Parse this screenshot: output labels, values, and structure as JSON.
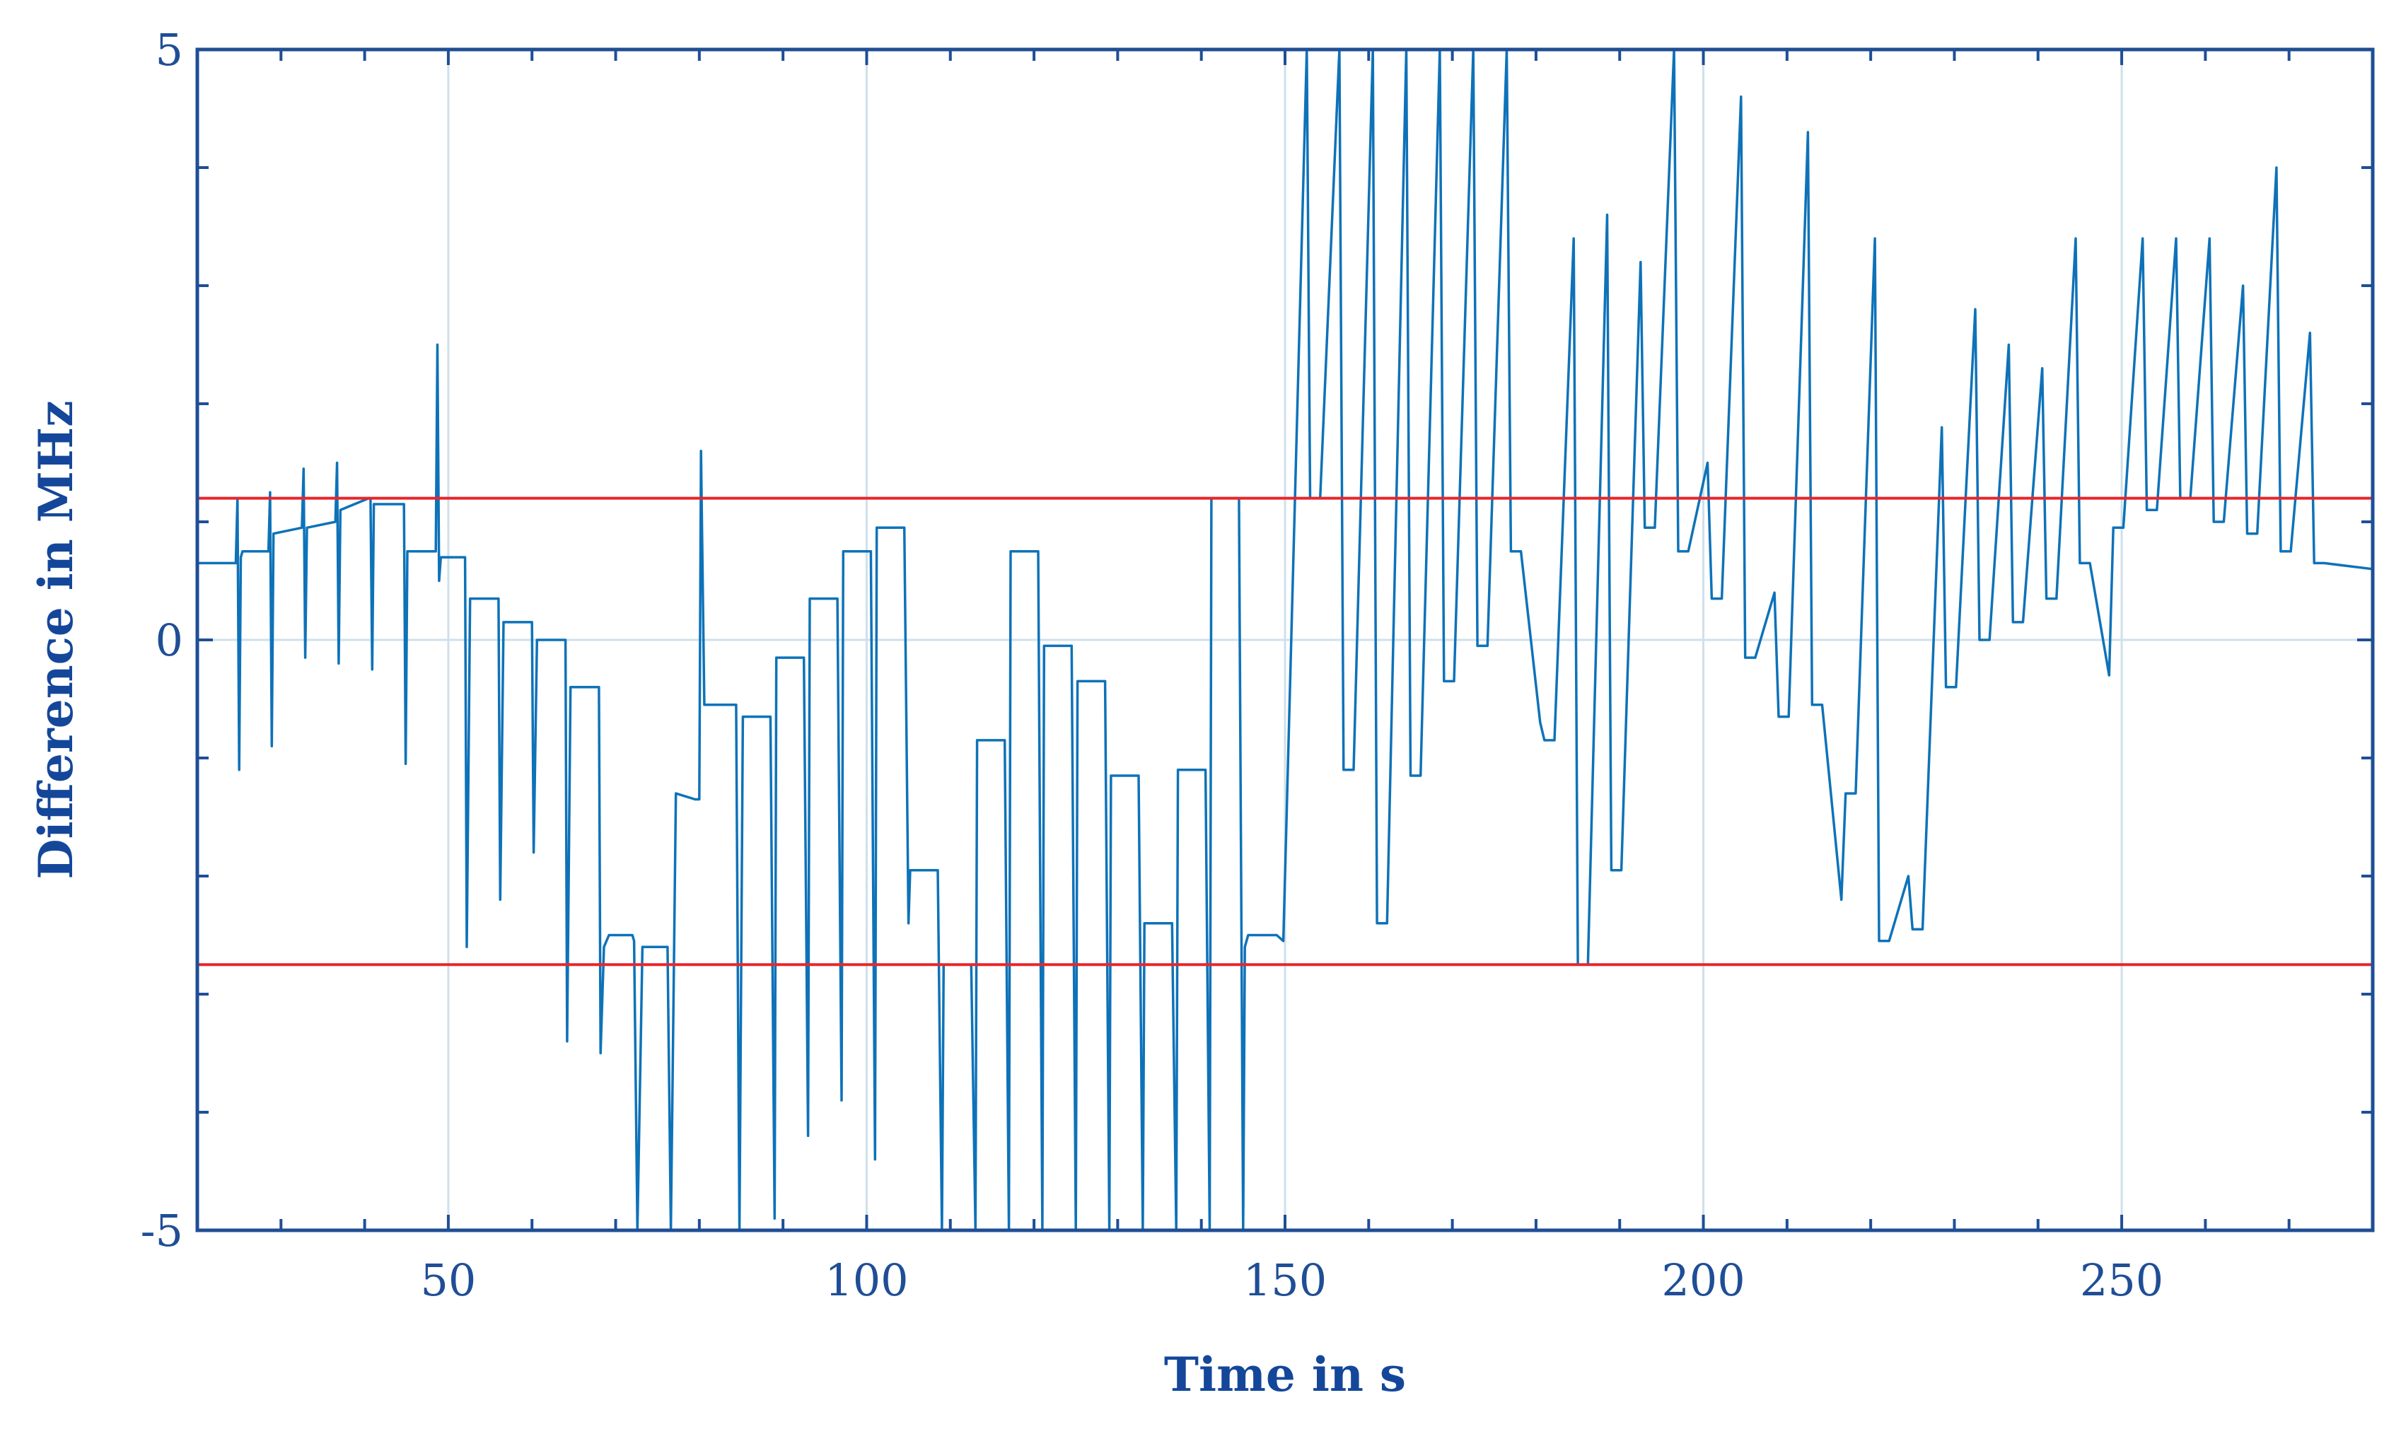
{
  "chart_data": {
    "type": "line",
    "title": "",
    "xlabel": "Time in s",
    "ylabel": "Difference in MHz",
    "xlim": [
      20,
      280
    ],
    "ylim": [
      -5,
      5
    ],
    "xticks": [
      50,
      100,
      150,
      200,
      250
    ],
    "yticks": [
      -5,
      0,
      5
    ],
    "xtick_labels": [
      "50",
      "100",
      "150",
      "200",
      "250"
    ],
    "ytick_labels": [
      "-5",
      "0",
      "5"
    ],
    "grid": true,
    "colors": {
      "series": "#0e72b8",
      "thresholds": "#e8262a",
      "axes": "#1f4e96",
      "grid": "#cfe0ec"
    },
    "thresholds": [
      1.2,
      -2.75
    ],
    "series": [
      {
        "x": [
          20,
          24.6,
          24.8,
          25,
          25.2,
          25.4,
          28.5,
          28.7,
          28.9,
          29.1,
          32.5,
          32.7,
          32.9,
          33.1,
          36.5,
          36.7,
          36.9,
          37.1,
          40.5,
          40.7,
          40.9,
          41.1,
          44.5,
          44.7,
          44.9,
          45.1,
          48.5,
          48.7,
          48.9,
          49.1,
          52,
          52.2,
          52.6,
          53.2,
          56,
          56.2,
          56.6,
          57.2,
          60,
          60.2,
          60.6,
          61.2,
          64,
          64.2,
          64.6,
          65.2,
          67.4,
          68,
          68.2,
          68.6,
          69.2,
          71.5,
          72,
          72.2,
          72.6,
          73.2,
          74.5,
          75,
          76.2,
          76.6,
          77.2,
          79.5,
          80,
          80.2,
          80.6,
          81.2,
          83.8,
          84.4,
          84.8,
          85.2,
          85.6,
          86.2,
          88.5,
          89,
          89.2,
          89.6,
          90.2,
          92.5,
          93,
          93.2,
          93.6,
          94.2,
          96.5,
          97,
          97.2,
          97.6,
          98.2,
          100.5,
          101,
          101.2,
          101.6,
          102.2,
          104.5,
          105,
          105.2,
          105.6,
          106.2,
          108.5,
          109,
          109.2,
          109.6,
          110.2,
          112.5,
          113,
          113.2,
          113.6,
          114.2,
          116.5,
          117,
          117.2,
          117.6,
          118.2,
          120.5,
          121,
          121.2,
          121.6,
          122.2,
          124.5,
          125,
          125.2,
          125.6,
          126.2,
          128.5,
          129,
          129.2,
          129.6,
          130.2,
          132.5,
          133,
          133.2,
          133.6,
          134.2,
          136.5,
          137,
          137.2,
          137.6,
          138.2,
          140.5,
          141,
          141.2,
          141.6,
          142.2,
          144.5,
          145,
          145.2,
          145.6,
          146.2,
          149,
          149.8,
          152.6,
          153,
          153.6,
          154.2,
          156.5,
          157,
          157.2,
          157.6,
          158.2,
          160.5,
          161,
          161.2,
          161.6,
          162.2,
          164.5,
          165,
          165.2,
          165.6,
          166.2,
          168.5,
          169,
          169.2,
          169.6,
          170.2,
          172.5,
          173,
          173.2,
          173.6,
          174.2,
          176.5,
          177,
          177.2,
          177.6,
          178.2,
          180.5,
          181,
          181.2,
          181.6,
          182.2,
          184.5,
          185,
          185.2,
          185.6,
          186.2,
          188.5,
          189,
          189.2,
          189.6,
          190.2,
          192.5,
          193,
          193.2,
          193.6,
          194.2,
          196.5,
          197,
          197.2,
          197.6,
          198.2,
          200.5,
          201,
          201.2,
          201.6,
          202.2,
          204.5,
          205,
          205.2,
          205.6,
          206.2,
          208.5,
          209,
          209.2,
          209.6,
          210.2,
          212.5,
          213,
          213.2,
          213.6,
          214.2,
          216.5,
          217,
          217.2,
          217.6,
          218.2,
          220.5,
          221,
          221.2,
          221.6,
          222.2,
          224.5,
          225,
          225.2,
          225.6,
          226.2,
          228.5,
          229,
          229.2,
          229.6,
          230.2,
          232.5,
          233,
          233.2,
          233.6,
          234.2,
          236.5,
          237,
          237.2,
          237.6,
          238.2,
          240.5,
          241,
          241.2,
          241.6,
          242.2,
          244.5,
          245,
          245.2,
          245.6,
          246.2,
          248.5,
          249,
          249.2,
          249.6,
          250.2,
          252.5,
          253,
          253.2,
          253.6,
          254.2,
          256.5,
          257,
          257.2,
          257.6,
          258.2,
          260.5,
          261,
          261.2,
          261.6,
          262.2,
          264.5,
          265,
          265.2,
          265.6,
          266.2,
          268.5,
          269,
          269.2,
          269.6,
          270.2,
          272.5,
          273,
          273.2,
          273.6,
          274.2,
          280
        ],
        "y": [
          0.65,
          0.65,
          1.2,
          -1.1,
          0.7,
          0.75,
          0.75,
          1.25,
          -0.9,
          0.9,
          0.95,
          1.45,
          -0.15,
          0.95,
          1.0,
          1.5,
          -0.2,
          1.1,
          1.2,
          1.2,
          -0.25,
          1.15,
          1.15,
          1.15,
          -1.05,
          0.75,
          0.75,
          2.5,
          0.5,
          0.7,
          0.7,
          -2.6,
          0.35,
          0.35,
          0.35,
          -2.2,
          0.15,
          0.15,
          0.15,
          -1.8,
          0.0,
          0.0,
          0.0,
          -3.4,
          -0.4,
          -0.4,
          -0.4,
          -0.4,
          -3.5,
          -2.6,
          -2.5,
          -2.5,
          -2.5,
          -2.55,
          -5.2,
          -2.6,
          -2.6,
          -2.6,
          -2.6,
          -5.2,
          -1.3,
          -1.35,
          -1.35,
          1.6,
          -0.55,
          -0.55,
          -0.55,
          -0.55,
          -5.2,
          -0.65,
          -0.65,
          -0.65,
          -0.65,
          -4.9,
          -0.15,
          -0.15,
          -0.15,
          -0.15,
          -4.2,
          0.35,
          0.35,
          0.35,
          0.35,
          -3.9,
          0.75,
          0.75,
          0.75,
          0.75,
          -4.4,
          0.95,
          0.95,
          0.95,
          0.95,
          -2.4,
          -1.95,
          -1.95,
          -1.95,
          -1.95,
          -5.2,
          -2.75,
          -2.75,
          -2.75,
          -2.75,
          -5.2,
          -0.85,
          -0.85,
          -0.85,
          -0.85,
          -5.2,
          0.75,
          0.75,
          0.75,
          0.75,
          -5.2,
          -0.05,
          -0.05,
          -0.05,
          -0.05,
          -5.2,
          -0.35,
          -0.35,
          -0.35,
          -0.35,
          -5.2,
          -1.15,
          -1.15,
          -1.15,
          -1.15,
          -5.2,
          -2.4,
          -2.4,
          -2.4,
          -2.4,
          -5.2,
          -1.1,
          -1.1,
          -1.1,
          -1.1,
          -5.2,
          1.2,
          1.2,
          1.2,
          1.2,
          -5.2,
          -2.6,
          -2.5,
          -2.5,
          -2.5,
          -2.55,
          5.3,
          1.2,
          1.2,
          1.2,
          5.3,
          -1.1,
          -1.1,
          -1.1,
          -1.1,
          5.3,
          -2.4,
          -2.4,
          -2.4,
          -2.4,
          5.3,
          -1.15,
          -1.15,
          -1.15,
          -1.15,
          5.3,
          -0.35,
          -0.35,
          -0.35,
          -0.35,
          5.3,
          -0.05,
          -0.05,
          -0.05,
          -0.05,
          5.3,
          0.75,
          0.75,
          0.75,
          0.75,
          -0.7,
          -0.85,
          -0.85,
          -0.85,
          -0.85,
          3.4,
          -2.75,
          -2.75,
          -2.75,
          -2.75,
          3.6,
          -1.95,
          -1.95,
          -1.95,
          -1.95,
          3.2,
          0.95,
          0.95,
          0.95,
          0.95,
          5.3,
          0.75,
          0.75,
          0.75,
          0.75,
          1.5,
          0.35,
          0.35,
          0.35,
          0.35,
          4.6,
          -0.15,
          -0.15,
          -0.15,
          -0.15,
          0.4,
          -0.65,
          -0.65,
          -0.65,
          -0.65,
          4.3,
          -0.55,
          -0.55,
          -0.55,
          -0.55,
          -2.2,
          -1.3,
          -1.3,
          -1.3,
          -1.3,
          3.4,
          -2.55,
          -2.55,
          -2.55,
          -2.55,
          -2.0,
          -2.45,
          -2.45,
          -2.45,
          -2.45,
          1.8,
          -0.4,
          -0.4,
          -0.4,
          -0.4,
          2.8,
          0.0,
          0.0,
          0.0,
          0.0,
          2.5,
          0.15,
          0.15,
          0.15,
          0.15,
          2.3,
          0.35,
          0.35,
          0.35,
          0.35,
          3.4,
          0.65,
          0.65,
          0.65,
          0.65,
          -0.3,
          0.95,
          0.95,
          0.95,
          0.95,
          3.4,
          1.1,
          1.1,
          1.1,
          1.1,
          3.4,
          1.2,
          1.2,
          1.2,
          1.2,
          3.4,
          1.0,
          1.0,
          1.0,
          1.0,
          3.0,
          0.9,
          0.9,
          0.9,
          0.9,
          4.0,
          0.75,
          0.75,
          0.75,
          0.75,
          2.6,
          0.65,
          0.65,
          0.65,
          0.65,
          0.6
        ]
      }
    ]
  }
}
